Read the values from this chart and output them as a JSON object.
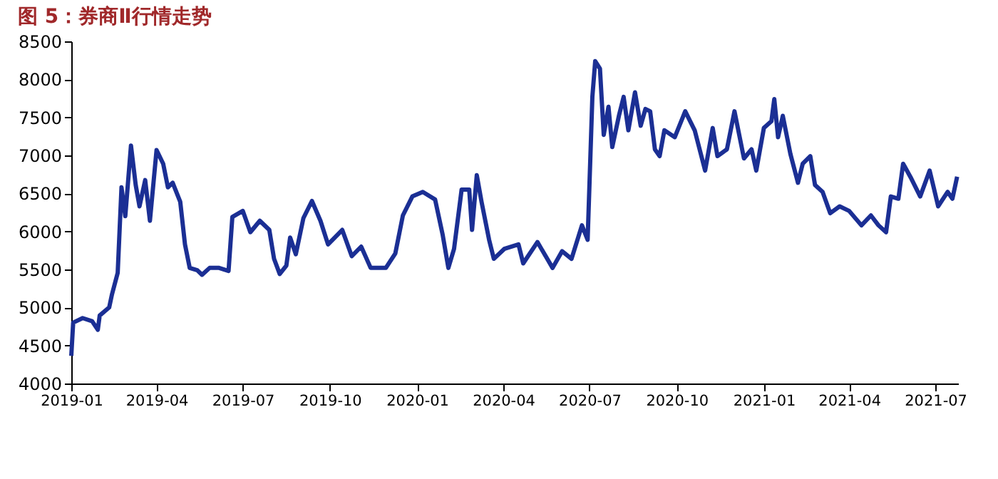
{
  "chart_data": {
    "type": "line",
    "title": "图 5：券商Ⅱ行情走势",
    "x": [
      "2019-01-01",
      "2019-01-03",
      "2019-01-13",
      "2019-01-23",
      "2019-01-29",
      "2019-01-31",
      "2019-02-10",
      "2019-02-13",
      "2019-02-19",
      "2019-02-23",
      "2019-02-27",
      "2019-03-05",
      "2019-03-10",
      "2019-03-14",
      "2019-03-20",
      "2019-03-25",
      "2019-04-01",
      "2019-04-08",
      "2019-04-13",
      "2019-04-18",
      "2019-04-26",
      "2019-05-01",
      "2019-05-06",
      "2019-05-14",
      "2019-05-19",
      "2019-05-27",
      "2019-06-06",
      "2019-06-16",
      "2019-06-20",
      "2019-07-01",
      "2019-07-09",
      "2019-07-19",
      "2019-07-29",
      "2019-08-03",
      "2019-08-09",
      "2019-08-16",
      "2019-08-20",
      "2019-08-26",
      "2019-09-03",
      "2019-09-12",
      "2019-09-21",
      "2019-09-29",
      "2019-10-14",
      "2019-10-24",
      "2019-11-03",
      "2019-11-13",
      "2019-11-29",
      "2019-12-09",
      "2019-12-17",
      "2019-12-27",
      "2020-01-07",
      "2020-01-20",
      "2020-01-28",
      "2020-02-03",
      "2020-02-09",
      "2020-02-17",
      "2020-02-25",
      "2020-02-28",
      "2020-03-04",
      "2020-03-09",
      "2020-03-17",
      "2020-03-22",
      "2020-04-02",
      "2020-04-17",
      "2020-04-22",
      "2020-05-07",
      "2020-05-23",
      "2020-06-02",
      "2020-06-12",
      "2020-06-23",
      "2020-06-29",
      "2020-07-04",
      "2020-07-07",
      "2020-07-12",
      "2020-07-16",
      "2020-07-21",
      "2020-07-25",
      "2020-08-01",
      "2020-08-06",
      "2020-08-11",
      "2020-08-18",
      "2020-08-24",
      "2020-08-29",
      "2020-09-03",
      "2020-09-08",
      "2020-09-13",
      "2020-09-18",
      "2020-09-29",
      "2020-10-10",
      "2020-10-20",
      "2020-10-31",
      "2020-11-08",
      "2020-11-13",
      "2020-11-23",
      "2020-12-01",
      "2020-12-11",
      "2020-12-19",
      "2020-12-24",
      "2021-01-01",
      "2021-01-09",
      "2021-01-12",
      "2021-01-16",
      "2021-01-21",
      "2021-01-29",
      "2021-02-06",
      "2021-02-11",
      "2021-02-19",
      "2021-02-24",
      "2021-03-04",
      "2021-03-12",
      "2021-03-22",
      "2021-04-01",
      "2021-04-14",
      "2021-04-24",
      "2021-05-02",
      "2021-05-10",
      "2021-05-15",
      "2021-05-23",
      "2021-05-28",
      "2021-06-05",
      "2021-06-15",
      "2021-06-25",
      "2021-07-04",
      "2021-07-14",
      "2021-07-19",
      "2021-07-24"
    ],
    "series": [
      {
        "color": "#1b2f94",
        "values": [
          4363,
          4800,
          4860,
          4820,
          4706,
          4894,
          5000,
          5175,
          5456,
          6580,
          6200,
          7130,
          6610,
          6330,
          6675,
          6140,
          7070,
          6890,
          6580,
          6640,
          6390,
          5830,
          5520,
          5490,
          5430,
          5520,
          5520,
          5480,
          6190,
          6270,
          5990,
          6140,
          6020,
          5640,
          5440,
          5550,
          5920,
          5700,
          6175,
          6400,
          6140,
          5830,
          6020,
          5675,
          5800,
          5520,
          5520,
          5710,
          6210,
          6460,
          6520,
          6420,
          5955,
          5520,
          5770,
          6550,
          6550,
          6020,
          6740,
          6390,
          5890,
          5640,
          5770,
          5830,
          5580,
          5860,
          5520,
          5740,
          5640,
          6080,
          5890,
          7770,
          8240,
          8140,
          7270,
          7640,
          7110,
          7520,
          7770,
          7330,
          7830,
          7390,
          7610,
          7580,
          7080,
          6990,
          7330,
          7240,
          7580,
          7330,
          6800,
          7360,
          6990,
          7080,
          7580,
          6960,
          7080,
          6800,
          7360,
          7450,
          7740,
          7240,
          7520,
          7020,
          6640,
          6890,
          6990,
          6610,
          6520,
          6240,
          6330,
          6270,
          6080,
          6210,
          6080,
          5990,
          6460,
          6430,
          6890,
          6710,
          6460,
          6800,
          6330,
          6520,
          6430,
          6720
        ]
      }
    ],
    "xlim": [
      "2019-01-01",
      "2021-07-25"
    ],
    "xticks": [
      "2019-01",
      "2019-04",
      "2019-07",
      "2019-10",
      "2020-01",
      "2020-04",
      "2020-07",
      "2020-10",
      "2021-01",
      "2021-04",
      "2021-07"
    ],
    "ylim": [
      4000,
      8500
    ],
    "yticks": [
      4000,
      4500,
      5000,
      5500,
      6000,
      6500,
      7000,
      7500,
      8000,
      8500
    ],
    "grid": false
  }
}
